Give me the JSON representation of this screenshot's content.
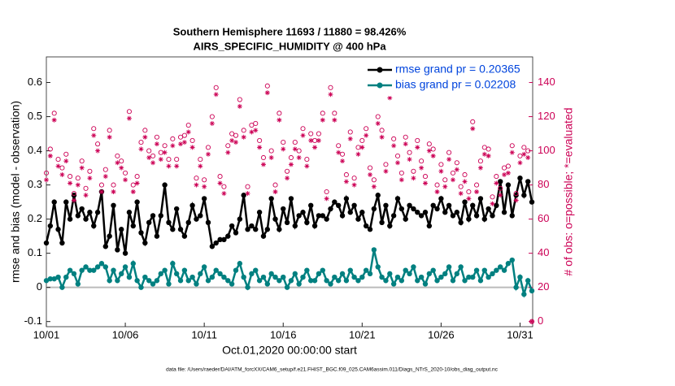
{
  "chart_data": {
    "type": "line",
    "title": "Southern Hemisphere 11693 / 11880 = 98.426%",
    "subtitle": "AIRS_SPECIFIC_HUMIDITY @ 400 hPa",
    "xlabel": "Oct.01,2020 00:00:00 start",
    "ylabel": "rmse and bias (model - observation)",
    "y2label": "# of obs: o=possible; *=evaluated",
    "footnote": "data file: /Users/raeder/DAI/ATM_forcXX/CAM6_setup/f.e21.FHIST_BGC.f09_025.CAM6assim.011/Diags_NTrS_2020-10/obs_diag_output.nc",
    "x": [
      0,
      0.25,
      0.5,
      0.75,
      1,
      1.25,
      1.5,
      1.75,
      2,
      2.25,
      2.5,
      2.75,
      3,
      3.25,
      3.5,
      3.75,
      4,
      4.25,
      4.5,
      4.75,
      5,
      5.25,
      5.5,
      5.75,
      6,
      6.25,
      6.5,
      6.75,
      7,
      7.25,
      7.5,
      7.75,
      8,
      8.25,
      8.5,
      8.75,
      9,
      9.25,
      9.5,
      9.75,
      10,
      10.25,
      10.5,
      10.75,
      11,
      11.25,
      11.5,
      11.75,
      12,
      12.25,
      12.5,
      12.75,
      13,
      13.25,
      13.5,
      13.75,
      14,
      14.25,
      14.5,
      14.75,
      15,
      15.25,
      15.5,
      15.75,
      16,
      16.25,
      16.5,
      16.75,
      17,
      17.25,
      17.5,
      17.75,
      18,
      18.25,
      18.5,
      18.75,
      19,
      19.25,
      19.5,
      19.75,
      20,
      20.25,
      20.5,
      20.75,
      21,
      21.25,
      21.5,
      21.75,
      22,
      22.25,
      22.5,
      22.75,
      23,
      23.25,
      23.5,
      23.75,
      24,
      24.25,
      24.5,
      24.75,
      25,
      25.25,
      25.5,
      25.75,
      26,
      26.25,
      26.5,
      26.75,
      27,
      27.25,
      27.5,
      27.75,
      28,
      28.25,
      28.5,
      28.75,
      29,
      29.25,
      29.5,
      29.75,
      30,
      30.25,
      30.5,
      30.75
    ],
    "xlim": [
      0,
      30.8
    ],
    "xticks": [
      {
        "value": 0,
        "label": "10/01"
      },
      {
        "value": 5,
        "label": "10/06"
      },
      {
        "value": 10,
        "label": "10/11"
      },
      {
        "value": 15,
        "label": "10/16"
      },
      {
        "value": 20,
        "label": "10/21"
      },
      {
        "value": 25,
        "label": "10/26"
      },
      {
        "value": 30,
        "label": "10/31"
      }
    ],
    "ylim": [
      -0.115,
      0.675
    ],
    "yticks": [
      -0.1,
      0,
      0.1,
      0.2,
      0.3,
      0.4,
      0.5,
      0.6
    ],
    "y2lim": [
      -3,
      155
    ],
    "y2ticks": [
      0,
      20,
      40,
      60,
      80,
      100,
      120,
      140
    ],
    "zero_line": true,
    "legend": "upper-right",
    "series": [
      {
        "name": "rmse grand pr = 0.20365",
        "color": "#000000",
        "marker": "filled",
        "line": true,
        "legend": true,
        "values": [
          0.13,
          0.18,
          0.25,
          0.17,
          0.13,
          0.25,
          0.2,
          0.27,
          0.21,
          0.23,
          0.2,
          0.22,
          0.18,
          0.22,
          0.28,
          0.12,
          0.15,
          0.24,
          0.11,
          0.17,
          0.1,
          0.22,
          0.18,
          0.25,
          0.16,
          0.13,
          0.19,
          0.21,
          0.15,
          0.21,
          0.3,
          0.19,
          0.17,
          0.23,
          0.17,
          0.15,
          0.19,
          0.24,
          0.2,
          0.21,
          0.26,
          0.19,
          0.12,
          0.13,
          0.14,
          0.14,
          0.15,
          0.18,
          0.16,
          0.2,
          0.27,
          0.17,
          0.18,
          0.17,
          0.22,
          0.15,
          0.17,
          0.26,
          0.2,
          0.17,
          0.23,
          0.19,
          0.26,
          0.18,
          0.21,
          0.22,
          0.19,
          0.24,
          0.18,
          0.21,
          0.21,
          0.2,
          0.23,
          0.25,
          0.24,
          0.21,
          0.26,
          0.22,
          0.24,
          0.2,
          0.22,
          0.18,
          0.17,
          0.23,
          0.27,
          0.19,
          0.24,
          0.18,
          0.21,
          0.26,
          0.23,
          0.2,
          0.24,
          0.23,
          0.22,
          0.21,
          0.22,
          0.18,
          0.24,
          0.23,
          0.26,
          0.22,
          0.24,
          0.21,
          0.22,
          0.19,
          0.25,
          0.2,
          0.24,
          0.21,
          0.26,
          0.2,
          0.23,
          0.21,
          0.24,
          0.31,
          0.22,
          0.3,
          0.21,
          0.27,
          0.32,
          0.27,
          0.31,
          0.25
        ]
      },
      {
        "name": "bias grand pr = 0.02208",
        "color": "#008080",
        "marker": "filled",
        "line": true,
        "legend": true,
        "values": [
          0.02,
          0.025,
          0.025,
          0.03,
          0.0,
          0.03,
          0.05,
          0.04,
          0.01,
          0.05,
          0.06,
          0.05,
          0.05,
          0.06,
          0.07,
          0.06,
          0.02,
          0.05,
          0.02,
          0.04,
          0.06,
          0.03,
          0.07,
          0.02,
          0.0,
          0.03,
          0.02,
          0.01,
          0.02,
          0.04,
          0.05,
          0.01,
          0.07,
          0.04,
          0.02,
          0.05,
          0.02,
          0.03,
          0.01,
          0.04,
          0.06,
          0.02,
          0.03,
          0.05,
          0.04,
          0.03,
          0.02,
          0.01,
          0.05,
          0.07,
          0.03,
          0.0,
          0.04,
          0.05,
          0.02,
          0.03,
          0.01,
          0.04,
          0.03,
          0.02,
          0.03,
          0.0,
          0.02,
          0.04,
          0.01,
          0.03,
          0.05,
          0.02,
          0.02,
          0.04,
          0.05,
          0.02,
          0.01,
          0.03,
          0.02,
          0.04,
          0.02,
          0.05,
          0.03,
          0.02,
          0.03,
          0.05,
          0.04,
          0.11,
          0.06,
          0.03,
          0.02,
          0.04,
          0.01,
          0.03,
          0.02,
          0.05,
          0.04,
          0.06,
          0.02,
          0.03,
          0.01,
          0.04,
          0.05,
          0.02,
          0.03,
          0.04,
          0.06,
          0.02,
          0.04,
          0.06,
          0.02,
          0.03,
          0.03,
          0.05,
          0.02,
          0.05,
          0.03,
          0.04,
          0.05,
          0.06,
          0.05,
          0.07,
          0.08,
          0.0,
          0.03,
          -0.02,
          0.02,
          -0.01
        ]
      },
      {
        "name": "possible",
        "color": "#cc0055",
        "marker": "circle-open",
        "line": false,
        "legend": false,
        "axis": "y2",
        "values": [
          87,
          101,
          122,
          95,
          90,
          98,
          85,
          75,
          84,
          94,
          78,
          88,
          113,
          104,
          80,
          89,
          112,
          80,
          97,
          94,
          87,
          123,
          80,
          85,
          105,
          112,
          100,
          97,
          108,
          99,
          103,
          95,
          107,
          95,
          108,
          109,
          115,
          106,
          84,
          95,
          83,
          102,
          120,
          137,
          85,
          79,
          103,
          110,
          109,
          130,
          112,
          79,
          115,
          116,
          106,
          96,
          138,
          100,
          80,
          122,
          105,
          88,
          96,
          105,
          100,
          113,
          95,
          110,
          106,
          110,
          122,
          76,
          137,
          122,
          103,
          98,
          86,
          111,
          84,
          102,
          106,
          113,
          90,
          83,
          120,
          112,
          92,
          135,
          107,
          97,
          87,
          108,
          99,
          88,
          106,
          94,
          85,
          104,
          101,
          80,
          92,
          83,
          99,
          87,
          93,
          79,
          86,
          76,
          117,
          80,
          94,
          102,
          101,
          73,
          85,
          78,
          90,
          91,
          103,
          75,
          97,
          102,
          100,
          0
        ]
      },
      {
        "name": "evaluated",
        "color": "#cc0055",
        "marker": "asterisk",
        "line": false,
        "legend": false,
        "axis": "y2",
        "values": [
          83,
          97,
          118,
          91,
          86,
          94,
          81,
          71,
          80,
          90,
          74,
          84,
          109,
          100,
          76,
          85,
          108,
          76,
          93,
          90,
          83,
          119,
          76,
          81,
          101,
          108,
          96,
          93,
          104,
          95,
          99,
          91,
          103,
          91,
          104,
          105,
          111,
          102,
          80,
          91,
          79,
          98,
          116,
          133,
          81,
          75,
          99,
          106,
          105,
          126,
          108,
          75,
          111,
          112,
          102,
          92,
          134,
          96,
          76,
          118,
          101,
          84,
          92,
          101,
          96,
          109,
          91,
          106,
          102,
          106,
          118,
          72,
          133,
          118,
          99,
          94,
          82,
          107,
          80,
          98,
          102,
          109,
          86,
          79,
          116,
          108,
          88,
          131,
          103,
          93,
          83,
          104,
          95,
          84,
          102,
          90,
          81,
          100,
          97,
          76,
          88,
          79,
          95,
          83,
          89,
          75,
          82,
          72,
          113,
          76,
          90,
          98,
          97,
          69,
          81,
          74,
          86,
          87,
          99,
          71,
          93,
          98,
          96,
          0
        ]
      }
    ]
  }
}
